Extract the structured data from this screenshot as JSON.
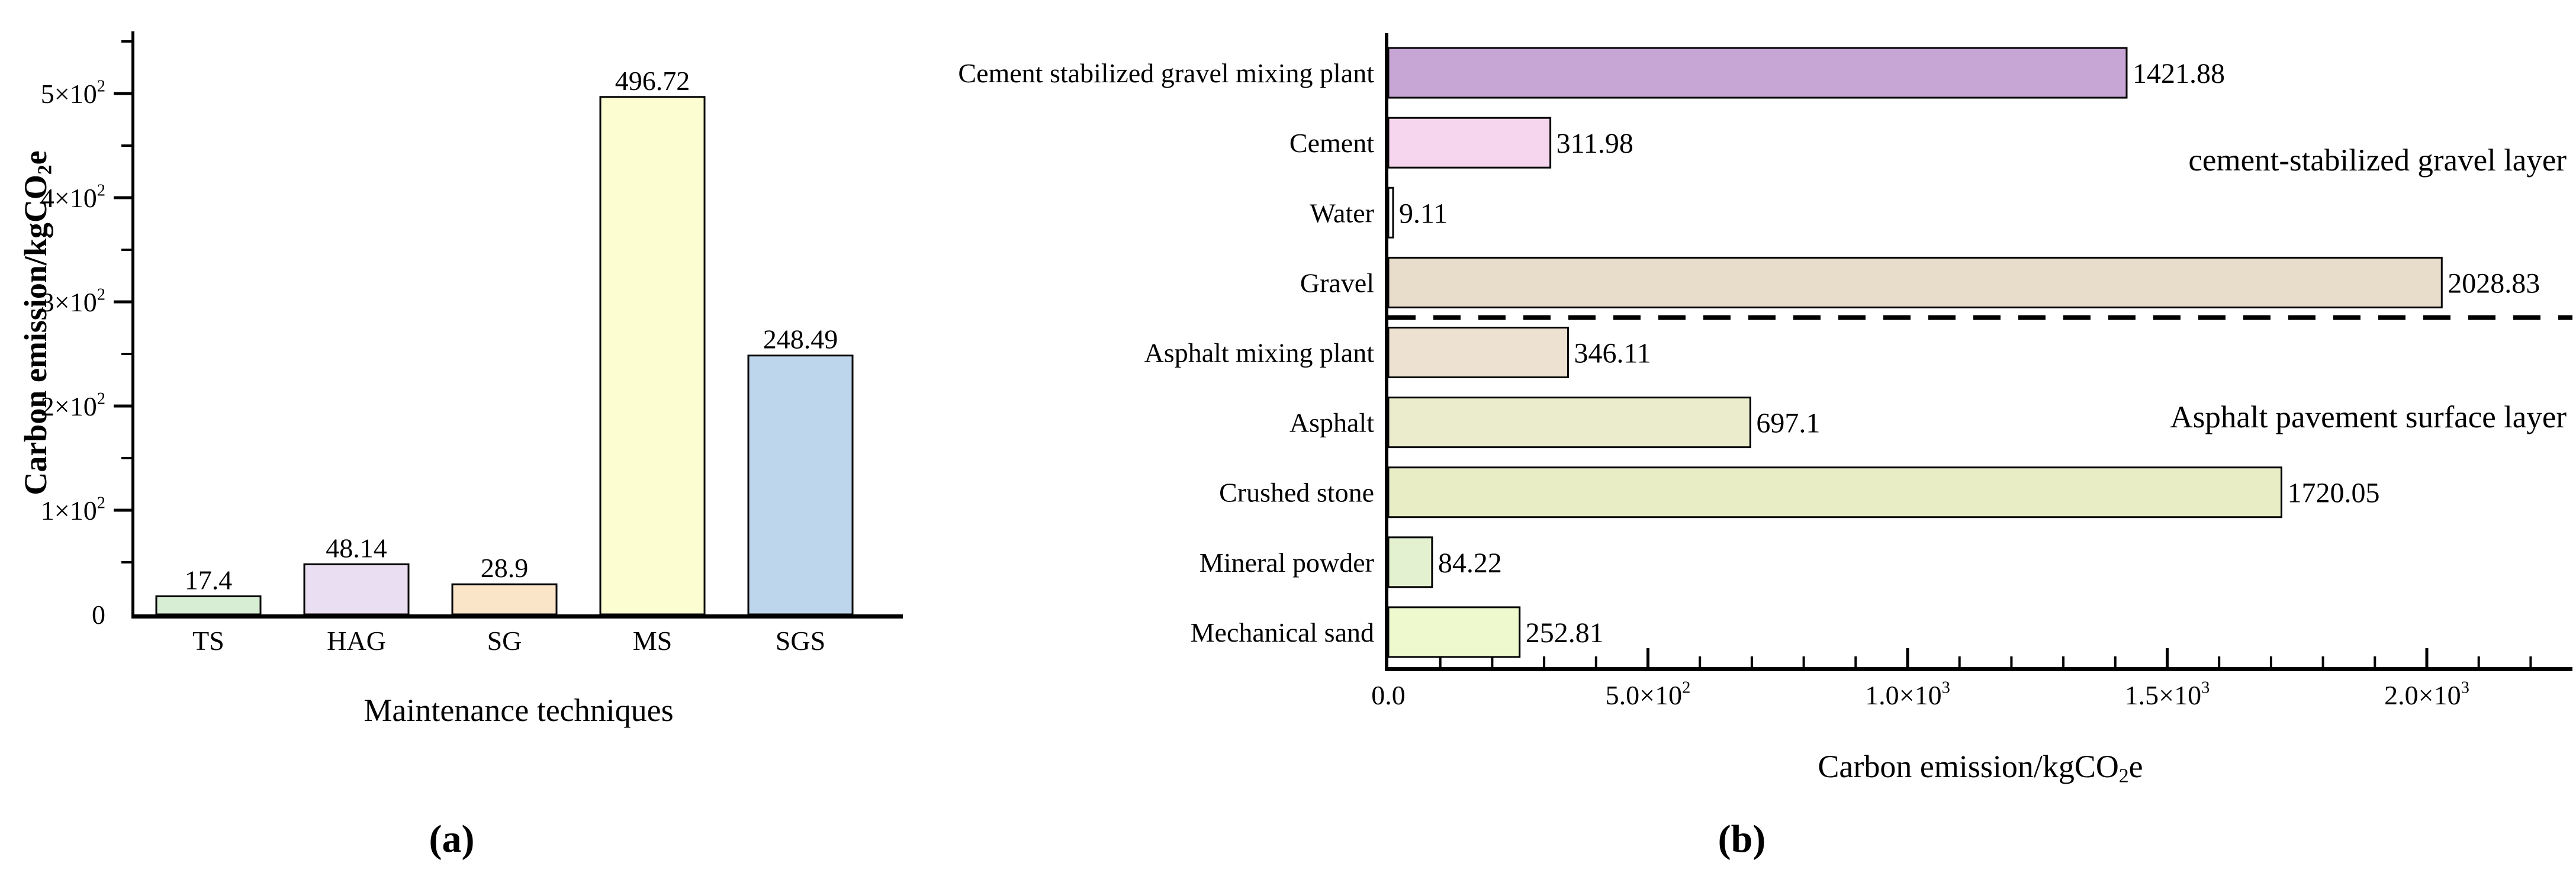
{
  "figure": {
    "background": "#ffffff",
    "captions": [
      {
        "text": "(a)"
      },
      {
        "text": "(b)"
      }
    ]
  },
  "chart_data": [
    {
      "id": "a",
      "type": "bar",
      "orientation": "vertical",
      "title": "",
      "xlabel": "Maintenance techniques",
      "ylabel": "Carbon emission/kgCO_{2}e",
      "categories": [
        "TS",
        "HAG",
        "SG",
        "MS",
        "SGS"
      ],
      "values": [
        17.4,
        48.14,
        28.9,
        496.72,
        248.49
      ],
      "value_labels": [
        "17.4",
        "48.14",
        "28.9",
        "496.72",
        "248.49"
      ],
      "bar_colors": [
        "#d7eed5",
        "#eadef2",
        "#fbe5c9",
        "#fdfdd2",
        "#bed6ec"
      ],
      "bar_outline": "#000000",
      "axis_color": "#000000",
      "ylim": [
        0,
        558
      ],
      "y_major_ticks": [
        {
          "v": 0,
          "label": "0"
        },
        {
          "v": 100,
          "label": "1×10^{2}"
        },
        {
          "v": 200,
          "label": "2×10^{2}"
        },
        {
          "v": 300,
          "label": "3×10^{2}"
        },
        {
          "v": 400,
          "label": "4×10^{2}"
        },
        {
          "v": 500,
          "label": "5×10^{2}"
        }
      ],
      "y_minor_tick_start": 50,
      "y_minor_tick_step": 100,
      "grid": false,
      "legend": "none"
    },
    {
      "id": "b",
      "type": "bar",
      "orientation": "horizontal",
      "title": "",
      "xlabel": "Carbon emission/kgCO_{2}e",
      "ylabel": "",
      "categories": [
        "Cement stabilized gravel mixing plant",
        "Cement",
        "Water",
        "Gravel",
        "Asphalt mixing plant",
        "Asphalt",
        "Crushed stone",
        "Mineral powder",
        "Mechanical sand"
      ],
      "values": [
        1421.88,
        311.98,
        9.11,
        2028.83,
        346.11,
        697.1,
        1720.05,
        84.22,
        252.81
      ],
      "value_labels": [
        "1421.88",
        "311.98",
        "9.11",
        "2028.83",
        "346.11",
        "697.1",
        "1720.05",
        "84.22",
        "252.81"
      ],
      "bar_colors": [
        "#c7a5d5",
        "#f6d6ee",
        "#ffffff",
        "#e8dcca",
        "#ede1d1",
        "#ebeccb",
        "#e9edc6",
        "#e4f1d0",
        "#eefacd"
      ],
      "bar_outline": "#000000",
      "axis_color": "#000000",
      "xlim": [
        0,
        2281
      ],
      "x_major_ticks": [
        {
          "v": 0,
          "label": "0.0"
        },
        {
          "v": 500,
          "label": "5.0×10^{2}"
        },
        {
          "v": 1000,
          "label": "1.0×10^{3}"
        },
        {
          "v": 1500,
          "label": "1.5×10^{3}"
        },
        {
          "v": 2000,
          "label": "2.0×10^{3}"
        }
      ],
      "x_minor_tick_step": 100,
      "separator": {
        "after_category": "Gravel",
        "style": "dashed",
        "color": "#000000"
      },
      "annotations": [
        {
          "text": "cement-stabilized gravel layer"
        },
        {
          "text": "Asphalt pavement surface layer"
        }
      ],
      "grid": false,
      "legend": "none"
    }
  ]
}
